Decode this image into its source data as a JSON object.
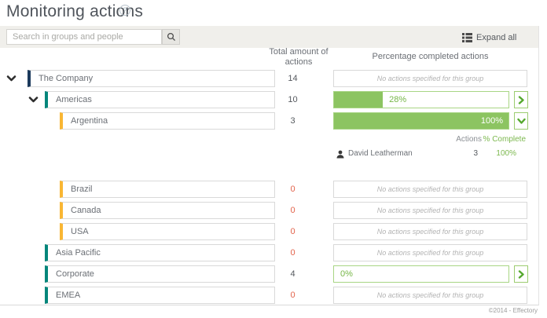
{
  "page": {
    "title": "Monitoring actions",
    "footer": "©2014 - Effectory"
  },
  "toolbar": {
    "search_placeholder": "Search in groups and people",
    "expand_all_label": "Expand all"
  },
  "columns": {
    "total": "Total amount of actions",
    "percentage": "Percentage completed actions"
  },
  "no_actions_text": "No actions specified for this group",
  "colors": {
    "accent_green": "#8cc461",
    "green_border": "#a8d584",
    "green_text": "#76b647",
    "zero_red": "#e2624a",
    "group_navy": "#1c3a5c",
    "group_teal": "#04867b",
    "group_yellow": "#f9b633",
    "strip_bg": "#f0efeb"
  },
  "rows": [
    {
      "name": "The Company",
      "total": "14"
    },
    {
      "name": "Americas",
      "total": "10",
      "percent": 28,
      "percent_label": "28%"
    },
    {
      "name": "Argentina",
      "total": "3",
      "percent": 100,
      "percent_label": "100%"
    },
    {
      "name": "Brazil",
      "total": "0"
    },
    {
      "name": "Canada",
      "total": "0"
    },
    {
      "name": "USA",
      "total": "0"
    },
    {
      "name": "Asia Pacific",
      "total": "0"
    },
    {
      "name": "Corporate",
      "total": "4",
      "percent": 0,
      "percent_label": "0%"
    },
    {
      "name": "EMEA",
      "total": "0"
    }
  ],
  "detail": {
    "actions_header": "Actions",
    "complete_header": "% Complete",
    "person": {
      "name": "David Leatherman",
      "actions": "3",
      "complete": "100%"
    }
  }
}
